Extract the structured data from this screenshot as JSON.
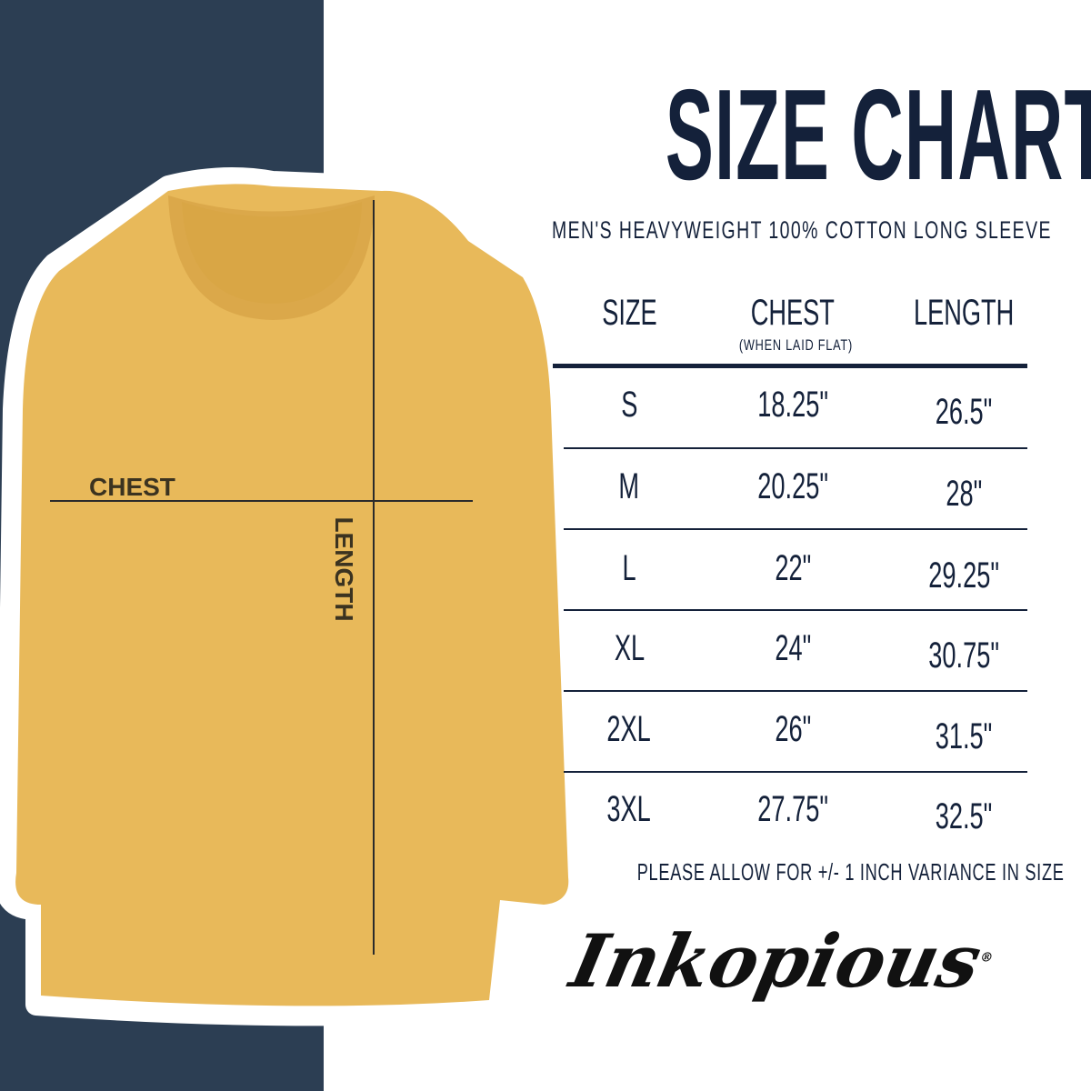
{
  "title": "SIZE CHART",
  "subtitle": "MEN'S HEAVYWEIGHT 100% COTTON LONG SLEEVE",
  "diagram": {
    "chest_label": "CHEST",
    "length_label": "LENGTH"
  },
  "colors": {
    "navy": "#2c3e53",
    "text": "#14213a",
    "shirt": "#e8b95a"
  },
  "table": {
    "headers": {
      "size": "SIZE",
      "chest": "CHEST",
      "chest_note": "(WHEN LAID FLAT)",
      "length": "LENGTH"
    },
    "rows": [
      {
        "size": "S",
        "chest": "18.25\"",
        "length": "26.5\""
      },
      {
        "size": "M",
        "chest": "20.25\"",
        "length": "28\""
      },
      {
        "size": "L",
        "chest": "22\"",
        "length": "29.25\""
      },
      {
        "size": "XL",
        "chest": "24\"",
        "length": "30.75\""
      },
      {
        "size": "2XL",
        "chest": "26\"",
        "length": "31.5\""
      },
      {
        "size": "3XL",
        "chest": "27.75\"",
        "length": "32.5\""
      }
    ]
  },
  "note": "PLEASE ALLOW FOR +/- 1 INCH VARIANCE IN SIZE",
  "logo": {
    "text": "Inkopious",
    "mark": "®"
  }
}
